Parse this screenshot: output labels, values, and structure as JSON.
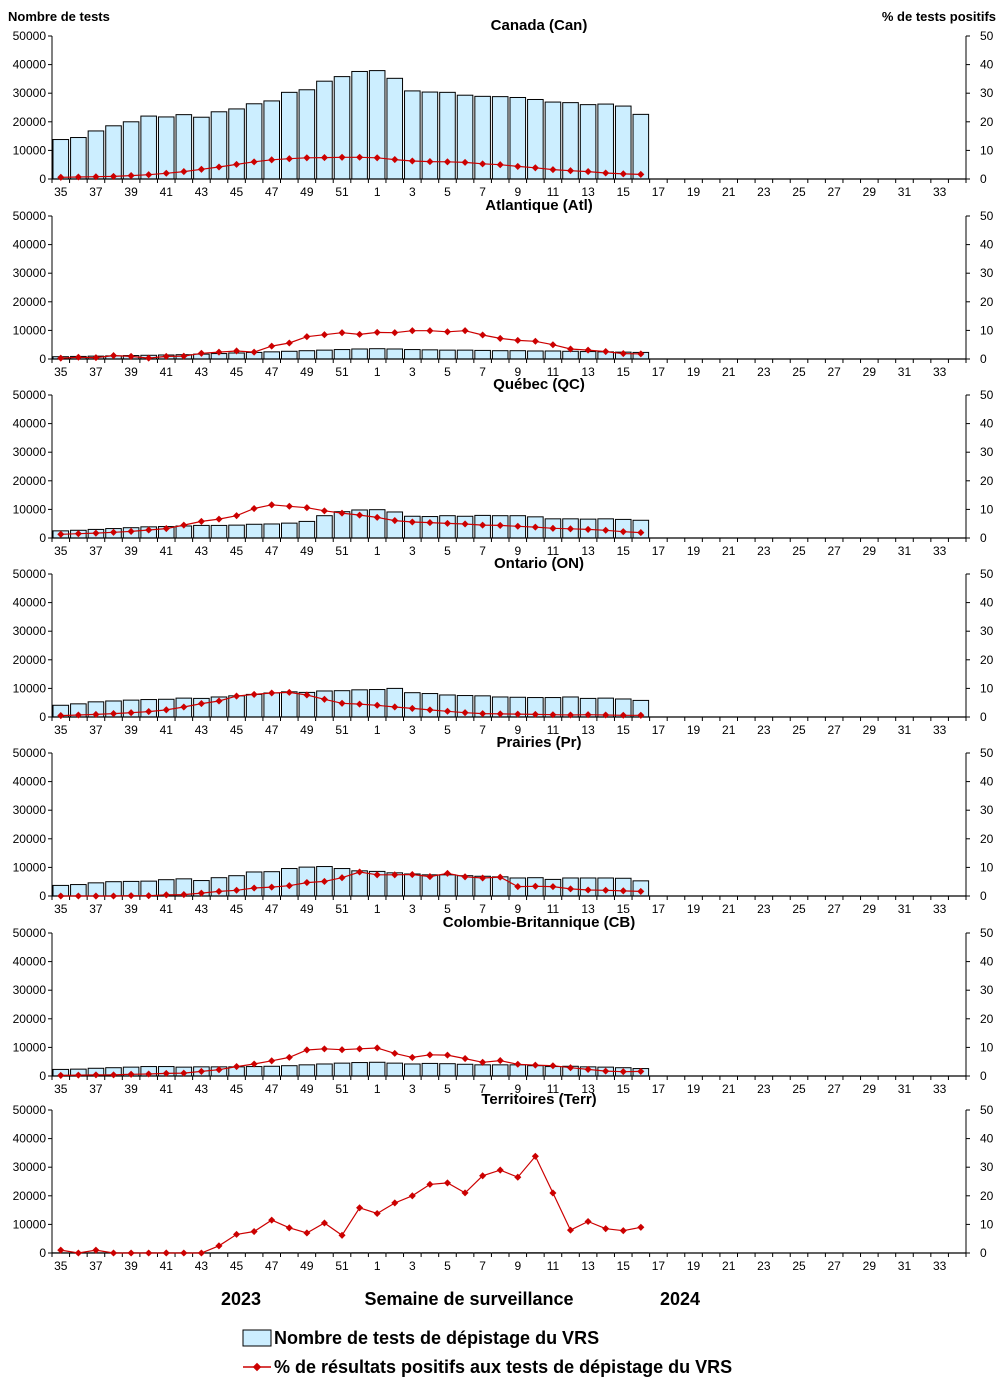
{
  "labels": {
    "left_axis_title": "Nombre de tests",
    "right_axis_title": "% de tests positifs",
    "x_axis_title": "Semaine de surveillance",
    "year_start": "2023",
    "year_end": "2024",
    "legend_bars": "Nombre de tests de dépistage du VRS",
    "legend_line": "% de résultats positifs aux tests de dépistage du VRS"
  },
  "colors": {
    "bar_fill": "#cceeff",
    "bar_stroke": "#000000",
    "line": "#cc0000",
    "axis": "#000000"
  },
  "weeks": [
    35,
    36,
    37,
    38,
    39,
    40,
    41,
    42,
    43,
    44,
    45,
    46,
    47,
    48,
    49,
    50,
    51,
    52,
    1,
    2,
    3,
    4,
    5,
    6,
    7,
    8,
    9,
    10,
    11,
    12,
    13,
    14,
    15,
    16,
    17,
    18,
    19,
    20,
    21,
    22,
    23,
    24,
    25,
    26,
    27,
    28,
    29,
    30,
    31,
    32,
    33,
    34
  ],
  "week_tick_labels": [
    "35",
    "37",
    "39",
    "41",
    "43",
    "45",
    "47",
    "49",
    "51",
    "1",
    "3",
    "5",
    "7",
    "9",
    "11",
    "13",
    "15",
    "17",
    "19",
    "21",
    "23",
    "25",
    "27",
    "29",
    "31",
    "33"
  ],
  "left_ticks": [
    "0",
    "10000",
    "20000",
    "30000",
    "40000",
    "50000"
  ],
  "right_ticks": [
    "0",
    "10",
    "20",
    "30",
    "40",
    "50"
  ],
  "chart_data": [
    {
      "type": "bar",
      "title": "Canada (Can)",
      "ylim_left": [
        0,
        50000
      ],
      "ylim_right": [
        0,
        50
      ],
      "series": [
        {
          "name": "Nombre de tests de dépistage du VRS",
          "axis": "left",
          "values": [
            13800,
            14500,
            16800,
            18600,
            20000,
            22000,
            21700,
            22500,
            21600,
            23500,
            24500,
            26300,
            27300,
            30300,
            31200,
            34200,
            35800,
            37600,
            37900,
            35200,
            30800,
            30400,
            30300,
            29300,
            28900,
            28800,
            28500,
            27800,
            26900,
            26700,
            26000,
            26200,
            25500,
            22600
          ]
        },
        {
          "name": "% de résultats positifs aux tests de dépistage du VRS",
          "axis": "right",
          "values": [
            0.6,
            0.7,
            0.8,
            0.9,
            1.2,
            1.5,
            2.0,
            2.6,
            3.4,
            4.2,
            5.1,
            6.0,
            6.7,
            7.1,
            7.4,
            7.5,
            7.6,
            7.6,
            7.4,
            6.8,
            6.3,
            6.1,
            6.0,
            5.8,
            5.3,
            5.0,
            4.4,
            3.9,
            3.3,
            2.9,
            2.6,
            2.1,
            1.8,
            1.6
          ]
        }
      ]
    },
    {
      "type": "bar",
      "title": "Atlantique (Atl)",
      "ylim_left": [
        0,
        50000
      ],
      "ylim_right": [
        0,
        50
      ],
      "series": [
        {
          "name": "Nombre de tests de dépistage du VRS",
          "axis": "left",
          "values": [
            800,
            900,
            1000,
            1100,
            1200,
            1300,
            1400,
            1500,
            1700,
            1900,
            2100,
            2300,
            2500,
            2700,
            2900,
            3100,
            3300,
            3500,
            3600,
            3500,
            3300,
            3200,
            3100,
            3100,
            3000,
            2900,
            2900,
            2800,
            2800,
            2700,
            2600,
            2500,
            2400,
            2300
          ]
        },
        {
          "name": "% de résultats positifs aux tests de dépistage du VRS",
          "axis": "right",
          "values": [
            0.3,
            0.6,
            0.5,
            1.2,
            0.9,
            0.3,
            0.9,
            1.0,
            2.0,
            2.4,
            2.8,
            2.4,
            4.5,
            5.6,
            7.8,
            8.5,
            9.2,
            8.6,
            9.3,
            9.2,
            9.9,
            9.9,
            9.5,
            9.9,
            8.4,
            7.2,
            6.5,
            6.2,
            5.0,
            3.5,
            3.1,
            2.6,
            1.9,
            1.8
          ]
        }
      ]
    },
    {
      "type": "bar",
      "title": "Québec (QC)",
      "ylim_left": [
        0,
        50000
      ],
      "ylim_right": [
        0,
        50
      ],
      "series": [
        {
          "name": "Nombre de tests de dépistage du VRS",
          "axis": "left",
          "values": [
            2500,
            2700,
            3000,
            3300,
            3600,
            3900,
            4000,
            4200,
            4400,
            4400,
            4500,
            4800,
            4900,
            5200,
            5800,
            7800,
            9200,
            9800,
            9900,
            9100,
            7600,
            7500,
            7800,
            7600,
            7900,
            7800,
            7800,
            7400,
            6700,
            6700,
            6600,
            6700,
            6500,
            6200
          ]
        },
        {
          "name": "% de résultats positifs aux tests de dépistage du VRS",
          "axis": "right",
          "values": [
            1.3,
            1.5,
            1.7,
            2.0,
            2.3,
            2.8,
            3.3,
            4.5,
            5.8,
            6.6,
            7.8,
            10.3,
            11.6,
            11.1,
            10.6,
            9.5,
            8.7,
            8.0,
            7.2,
            6.1,
            5.6,
            5.4,
            5.1,
            4.9,
            4.5,
            4.4,
            4.1,
            3.8,
            3.4,
            3.2,
            3.0,
            2.7,
            2.2,
            1.9
          ]
        }
      ]
    },
    {
      "type": "bar",
      "title": "Ontario (ON)",
      "ylim_left": [
        0,
        50000
      ],
      "ylim_right": [
        0,
        50
      ],
      "series": [
        {
          "name": "Nombre de tests de dépistage du VRS",
          "axis": "left",
          "values": [
            4100,
            4600,
            5300,
            5600,
            5900,
            6100,
            6200,
            6600,
            6500,
            7000,
            7400,
            7900,
            8400,
            8800,
            8600,
            9100,
            9200,
            9500,
            9600,
            10000,
            8500,
            8200,
            7700,
            7500,
            7400,
            7000,
            6900,
            6800,
            6800,
            7000,
            6500,
            6600,
            6300,
            5800
          ]
        },
        {
          "name": "% de résultats positifs aux tests de dépistage du VRS",
          "axis": "right",
          "values": [
            0.5,
            0.7,
            0.9,
            1.2,
            1.5,
            1.9,
            2.5,
            3.5,
            4.7,
            5.6,
            7.3,
            7.9,
            8.4,
            8.6,
            7.7,
            6.2,
            4.8,
            4.5,
            4.1,
            3.5,
            3.0,
            2.5,
            2.0,
            1.5,
            1.2,
            1.1,
            1.0,
            0.9,
            0.8,
            0.7,
            0.8,
            0.7,
            0.6,
            0.6
          ]
        }
      ]
    },
    {
      "type": "bar",
      "title": "Prairies (Pr)",
      "ylim_left": [
        0,
        50000
      ],
      "ylim_right": [
        0,
        50
      ],
      "series": [
        {
          "name": "Nombre de tests de dépistage du VRS",
          "axis": "left",
          "values": [
            3700,
            4000,
            4600,
            5000,
            5100,
            5200,
            5700,
            6000,
            5400,
            6400,
            7100,
            8400,
            8500,
            9600,
            10100,
            10300,
            9600,
            8800,
            8600,
            8100,
            7700,
            7400,
            7400,
            7100,
            6900,
            6700,
            6300,
            6400,
            5800,
            6300,
            6300,
            6300,
            6200,
            5300
          ]
        },
        {
          "name": "% de résultats positifs aux tests de dépistage du VRS",
          "axis": "right",
          "values": [
            0.0,
            0.0,
            0.0,
            0.0,
            0.1,
            0.1,
            0.4,
            0.5,
            1.0,
            1.6,
            2.0,
            2.8,
            3.1,
            3.6,
            4.7,
            5.1,
            6.4,
            8.4,
            7.4,
            7.4,
            7.5,
            6.8,
            7.9,
            6.7,
            6.3,
            6.6,
            3.3,
            3.4,
            3.3,
            2.5,
            2.1,
            2.0,
            1.8,
            1.6
          ]
        }
      ]
    },
    {
      "type": "bar",
      "title": "Colombie-Britannique (CB)",
      "ylim_left": [
        0,
        50000
      ],
      "ylim_right": [
        0,
        50
      ],
      "series": [
        {
          "name": "Nombre de tests de dépistage du VRS",
          "axis": "left",
          "values": [
            2300,
            2400,
            2700,
            2900,
            3100,
            3300,
            3300,
            3100,
            3200,
            3200,
            3200,
            3300,
            3400,
            3600,
            3900,
            4200,
            4500,
            4700,
            4800,
            4500,
            4200,
            4400,
            4300,
            4100,
            3900,
            3900,
            3900,
            3600,
            3300,
            3400,
            3200,
            3100,
            2900,
            2600
          ]
        },
        {
          "name": "% de résultats positifs aux tests de dépistage du VRS",
          "axis": "right",
          "values": [
            0.2,
            0.3,
            0.4,
            0.4,
            0.6,
            0.7,
            0.9,
            1.0,
            1.6,
            2.2,
            3.3,
            4.2,
            5.3,
            6.5,
            9.1,
            9.5,
            9.2,
            9.5,
            9.8,
            7.9,
            6.5,
            7.4,
            7.3,
            6.1,
            4.8,
            5.4,
            4.1,
            3.8,
            3.6,
            2.9,
            2.3,
            1.7,
            1.5,
            1.6
          ]
        }
      ]
    },
    {
      "type": "bar",
      "title": "Territoires (Terr)",
      "ylim_left": [
        0,
        50000
      ],
      "ylim_right": [
        0,
        50
      ],
      "series": [
        {
          "name": "Nombre de tests de dépistage du VRS",
          "axis": "left",
          "values": [
            30,
            30,
            40,
            40,
            40,
            40,
            40,
            40,
            40,
            50,
            50,
            60,
            60,
            60,
            60,
            70,
            70,
            70,
            70,
            70,
            70,
            70,
            70,
            70,
            70,
            70,
            70,
            70,
            60,
            60,
            60,
            50,
            50,
            50
          ]
        },
        {
          "name": "% de résultats positifs aux tests de dépistage du VRS",
          "axis": "right",
          "values": [
            1.0,
            0.0,
            1.0,
            0.0,
            0.0,
            0.0,
            0.0,
            0.0,
            0.0,
            2.5,
            6.5,
            7.5,
            11.5,
            8.8,
            7.0,
            10.5,
            6.2,
            15.8,
            13.8,
            17.5,
            20.0,
            24.0,
            24.5,
            21.0,
            27.0,
            29.0,
            26.5,
            33.8,
            21.0,
            8.0,
            11.0,
            8.5,
            7.8,
            9.0
          ]
        }
      ]
    }
  ]
}
